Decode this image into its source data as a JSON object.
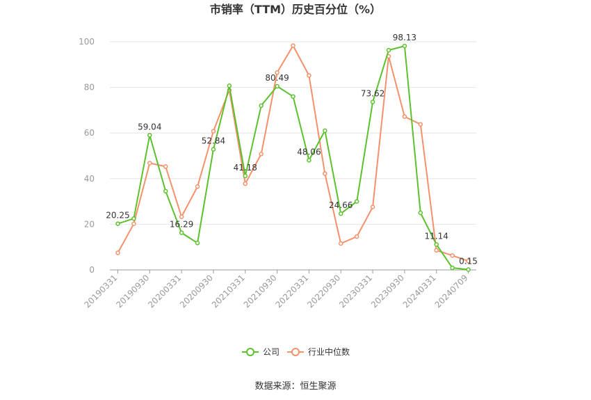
{
  "chart_data": {
    "type": "line",
    "title": "市销率（TTM）历史百分位（%）",
    "x": [
      "20190331",
      "20190630",
      "20190930",
      "20191231",
      "20200331",
      "20200630",
      "20200930",
      "20201231",
      "20210331",
      "20210630",
      "20210930",
      "20211231",
      "20220331",
      "20220630",
      "20220930",
      "20221230",
      "20230331",
      "20230630",
      "20230930",
      "20231229",
      "20240331",
      "20240630",
      "20240709"
    ],
    "x_tick_labels": [
      "20190331",
      "20190930",
      "20200331",
      "20200930",
      "20210331",
      "20210930",
      "20220331",
      "20220930",
      "20230331",
      "20230930",
      "20240331",
      "20240709"
    ],
    "ylim": [
      0,
      100
    ],
    "yticks": [
      0,
      20,
      40,
      60,
      80,
      100
    ],
    "grid": true,
    "legend_position": "bottom",
    "series": [
      {
        "name": "公司",
        "color": "#5cc12d",
        "values": [
          20.25,
          22.5,
          59.04,
          34.5,
          16.29,
          11.8,
          52.84,
          80.7,
          41.18,
          72.0,
          80.49,
          76.0,
          48.06,
          61.0,
          24.66,
          30.0,
          73.62,
          96.3,
          98.13,
          25.0,
          11.14,
          0.9,
          0.15
        ]
      },
      {
        "name": "行业中位数",
        "color": "#f5916a",
        "values": [
          7.5,
          20.2,
          46.8,
          45.3,
          23.3,
          36.5,
          60.8,
          78.8,
          37.8,
          50.8,
          86.5,
          98.3,
          85.2,
          42.2,
          11.6,
          14.6,
          27.6,
          93.6,
          67.2,
          63.8,
          8.6,
          6.3,
          3.9
        ]
      }
    ],
    "data_labels": [
      {
        "series": 0,
        "index": 0,
        "text": "20.25"
      },
      {
        "series": 0,
        "index": 2,
        "text": "59.04"
      },
      {
        "series": 0,
        "index": 4,
        "text": "16.29"
      },
      {
        "series": 0,
        "index": 6,
        "text": "52.84"
      },
      {
        "series": 0,
        "index": 8,
        "text": "41.18"
      },
      {
        "series": 0,
        "index": 10,
        "text": "80.49"
      },
      {
        "series": 0,
        "index": 12,
        "text": "48.06"
      },
      {
        "series": 0,
        "index": 14,
        "text": "24.66"
      },
      {
        "series": 0,
        "index": 16,
        "text": "73.62"
      },
      {
        "series": 0,
        "index": 18,
        "text": "98.13"
      },
      {
        "series": 0,
        "index": 20,
        "text": "11.14"
      },
      {
        "series": 0,
        "index": 22,
        "text": "0.15"
      }
    ]
  },
  "legend": {
    "company": "公司",
    "industry": "行业中位数"
  },
  "source_text": "数据来源：恒生聚源"
}
